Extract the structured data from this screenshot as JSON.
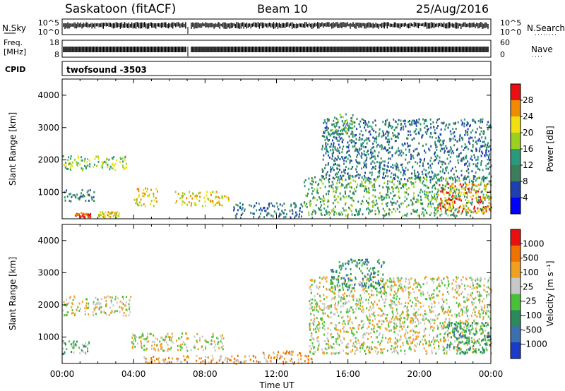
{
  "header": {
    "station": "Saskatoon (fitACF)",
    "beam": "Beam 10",
    "date": "25/Aug/2016"
  },
  "noise_panel": {
    "left_label": "N.Sky",
    "left_ticks": [
      "10^5",
      "10^0"
    ],
    "right_ticks": [
      "10^5",
      "10^0"
    ],
    "right_label": "N.Search"
  },
  "freq_panel": {
    "left_label_1": "Freq.",
    "left_label_2": "[MHz]",
    "left_ticks": [
      "18",
      "8"
    ],
    "right_ticks": [
      "60",
      "0"
    ],
    "right_label": "Nave"
  },
  "cpid": {
    "label": "CPID",
    "value": "twofsound -3503"
  },
  "chart_data": [
    {
      "type": "heatmap",
      "quantity": "Power",
      "ylabel": "Slant Range [km]",
      "ylim": [
        180,
        4500
      ],
      "yticks": [
        "4000",
        "3000",
        "2000",
        "1000"
      ],
      "colorbar": {
        "label": "Power [dB]",
        "ticks": [
          "28",
          "24",
          "20",
          "16",
          "12",
          "8",
          "4"
        ],
        "colors": [
          "#0000ff",
          "#1f3fb0",
          "#3a7f5a",
          "#2a9a7a",
          "#9ad020",
          "#f0e010",
          "#f08a00",
          "#e81010"
        ]
      },
      "echo_regions": [
        {
          "t0": 0.0,
          "t1": 3.8,
          "r0": 1700,
          "r1": 2150,
          "level": 4
        },
        {
          "t0": 0.0,
          "t1": 1.8,
          "r0": 750,
          "r1": 1100,
          "level": 2
        },
        {
          "t0": 0.7,
          "t1": 1.6,
          "r0": 250,
          "r1": 400,
          "level": 7
        },
        {
          "t0": 2.0,
          "t1": 3.2,
          "r0": 250,
          "r1": 420,
          "level": 5
        },
        {
          "t0": 4.0,
          "t1": 5.3,
          "r0": 600,
          "r1": 1150,
          "level": 5
        },
        {
          "t0": 6.3,
          "t1": 9.3,
          "r0": 600,
          "r1": 1050,
          "level": 5
        },
        {
          "t0": 9.5,
          "t1": 13.5,
          "r0": 250,
          "r1": 700,
          "level": 2
        },
        {
          "t0": 13.5,
          "t1": 24.0,
          "r0": 300,
          "r1": 1500,
          "level": 3
        },
        {
          "t0": 14.5,
          "t1": 24.0,
          "r0": 1400,
          "r1": 3300,
          "level": 2
        },
        {
          "t0": 15.0,
          "t1": 16.5,
          "r0": 2800,
          "r1": 3450,
          "level": 3
        },
        {
          "t0": 21.0,
          "t1": 24.0,
          "r0": 400,
          "r1": 1300,
          "level": 6
        }
      ]
    },
    {
      "type": "heatmap",
      "quantity": "Velocity",
      "ylabel": "Slant Range [km]",
      "ylim": [
        180,
        4500
      ],
      "yticks": [
        "4000",
        "3000",
        "2000",
        "1000"
      ],
      "xlabel": "Time UT",
      "xticks": [
        "00:00",
        "04:00",
        "08:00",
        "12:00",
        "16:00",
        "20:00",
        "00:00"
      ],
      "xlim_hours": [
        0,
        24
      ],
      "colorbar": {
        "label": "Velocity [m s⁻¹]",
        "ticks": [
          "1000",
          "500",
          "100",
          "25",
          "-25",
          "-100",
          "-500",
          "-1000"
        ],
        "colors": [
          "#1a3ac8",
          "#3a6fb0",
          "#2a8a5a",
          "#4ac03a",
          "#c8c8c8",
          "#f0a020",
          "#f07000",
          "#e81010"
        ]
      },
      "echo_regions": [
        {
          "t0": 0.0,
          "t1": 3.8,
          "r0": 1700,
          "r1": 2300,
          "level": 4
        },
        {
          "t0": 0.0,
          "t1": 1.5,
          "r0": 500,
          "r1": 900,
          "level": 3
        },
        {
          "t0": 3.8,
          "t1": 9.0,
          "r0": 600,
          "r1": 1150,
          "level": 4
        },
        {
          "t0": 4.5,
          "t1": 11.0,
          "r0": 200,
          "r1": 450,
          "level": 5
        },
        {
          "t0": 11.0,
          "t1": 14.0,
          "r0": 200,
          "r1": 600,
          "level": 5
        },
        {
          "t0": 13.8,
          "t1": 24.0,
          "r0": 500,
          "r1": 2900,
          "level": 4
        },
        {
          "t0": 15.0,
          "t1": 18.0,
          "r0": 2500,
          "r1": 3450,
          "level": 2
        },
        {
          "t0": 21.5,
          "t1": 24.0,
          "r0": 500,
          "r1": 1500,
          "level": 2
        }
      ]
    }
  ]
}
